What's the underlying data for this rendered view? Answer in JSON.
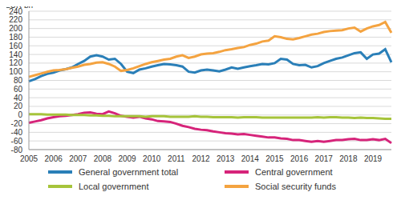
{
  "chart_data": {
    "type": "line",
    "y_label": "EUR bn",
    "categories": [
      "2005",
      null,
      null,
      null,
      "2006",
      null,
      null,
      null,
      "2007",
      null,
      null,
      null,
      "2008",
      null,
      null,
      null,
      "2009",
      null,
      null,
      null,
      "2010",
      null,
      null,
      null,
      "2011",
      null,
      null,
      null,
      "2012",
      null,
      null,
      null,
      "2013",
      null,
      null,
      null,
      "2014",
      null,
      null,
      null,
      "2015",
      null,
      null,
      null,
      "2016",
      null,
      null,
      null,
      "2017",
      null,
      null,
      null,
      "2018",
      null,
      null,
      null,
      "2019",
      null,
      null,
      null
    ],
    "series": [
      {
        "name": "General government total",
        "color": "#2a7fb8",
        "values": [
          78,
          83,
          90,
          95,
          98,
          103,
          106,
          110,
          118,
          125,
          135,
          138,
          135,
          128,
          130,
          118,
          100,
          97,
          105,
          108,
          112,
          115,
          118,
          117,
          115,
          112,
          100,
          98,
          103,
          105,
          103,
          101,
          105,
          110,
          107,
          110,
          113,
          115,
          118,
          117,
          120,
          130,
          128,
          118,
          115,
          116,
          110,
          113,
          120,
          125,
          130,
          133,
          138,
          143,
          145,
          130,
          140,
          142,
          152,
          122
        ]
      },
      {
        "name": "Central government",
        "color": "#d6247a",
        "values": [
          -18,
          -15,
          -12,
          -8,
          -5,
          -3,
          -2,
          0,
          2,
          5,
          6,
          3,
          2,
          8,
          4,
          -2,
          -4,
          -6,
          -4,
          -8,
          -10,
          -14,
          -15,
          -16,
          -20,
          -25,
          -28,
          -32,
          -34,
          -35,
          -38,
          -40,
          -42,
          -43,
          -45,
          -44,
          -46,
          -48,
          -50,
          -52,
          -52,
          -54,
          -55,
          -58,
          -58,
          -60,
          -62,
          -60,
          -62,
          -60,
          -58,
          -58,
          -56,
          -55,
          -58,
          -58,
          -56,
          -58,
          -55,
          -65
        ]
      },
      {
        "name": "Local government",
        "color": "#a6c43b",
        "values": [
          2,
          2,
          2,
          1,
          1,
          1,
          1,
          0,
          0,
          0,
          -1,
          -1,
          -2,
          -2,
          -3,
          -3,
          -3,
          -3,
          -3,
          -4,
          -3,
          -3,
          -3,
          -4,
          -4,
          -4,
          -4,
          -3,
          -4,
          -4,
          -5,
          -5,
          -5,
          -5,
          -6,
          -5,
          -5,
          -5,
          -6,
          -6,
          -6,
          -6,
          -6,
          -6,
          -6,
          -6,
          -6,
          -5,
          -6,
          -5,
          -5,
          -6,
          -6,
          -7,
          -6,
          -7,
          -7,
          -8,
          -9,
          -9
        ]
      },
      {
        "name": "Social security funds",
        "color": "#f4a340",
        "values": [
          88,
          92,
          96,
          100,
          103,
          104,
          106,
          109,
          112,
          116,
          118,
          121,
          122,
          118,
          112,
          102,
          104,
          108,
          113,
          118,
          122,
          125,
          128,
          130,
          135,
          138,
          132,
          135,
          140,
          142,
          143,
          146,
          150,
          152,
          155,
          157,
          162,
          165,
          170,
          172,
          182,
          180,
          176,
          175,
          178,
          182,
          186,
          188,
          192,
          194,
          195,
          196,
          200,
          202,
          193,
          200,
          205,
          208,
          215,
          190
        ]
      }
    ],
    "ylim": [
      -80,
      240
    ],
    "yticks": [
      -80,
      -60,
      -40,
      -20,
      0,
      20,
      40,
      60,
      80,
      100,
      120,
      140,
      160,
      180,
      200,
      220,
      240
    ],
    "grid": true,
    "legend": "bottom"
  }
}
